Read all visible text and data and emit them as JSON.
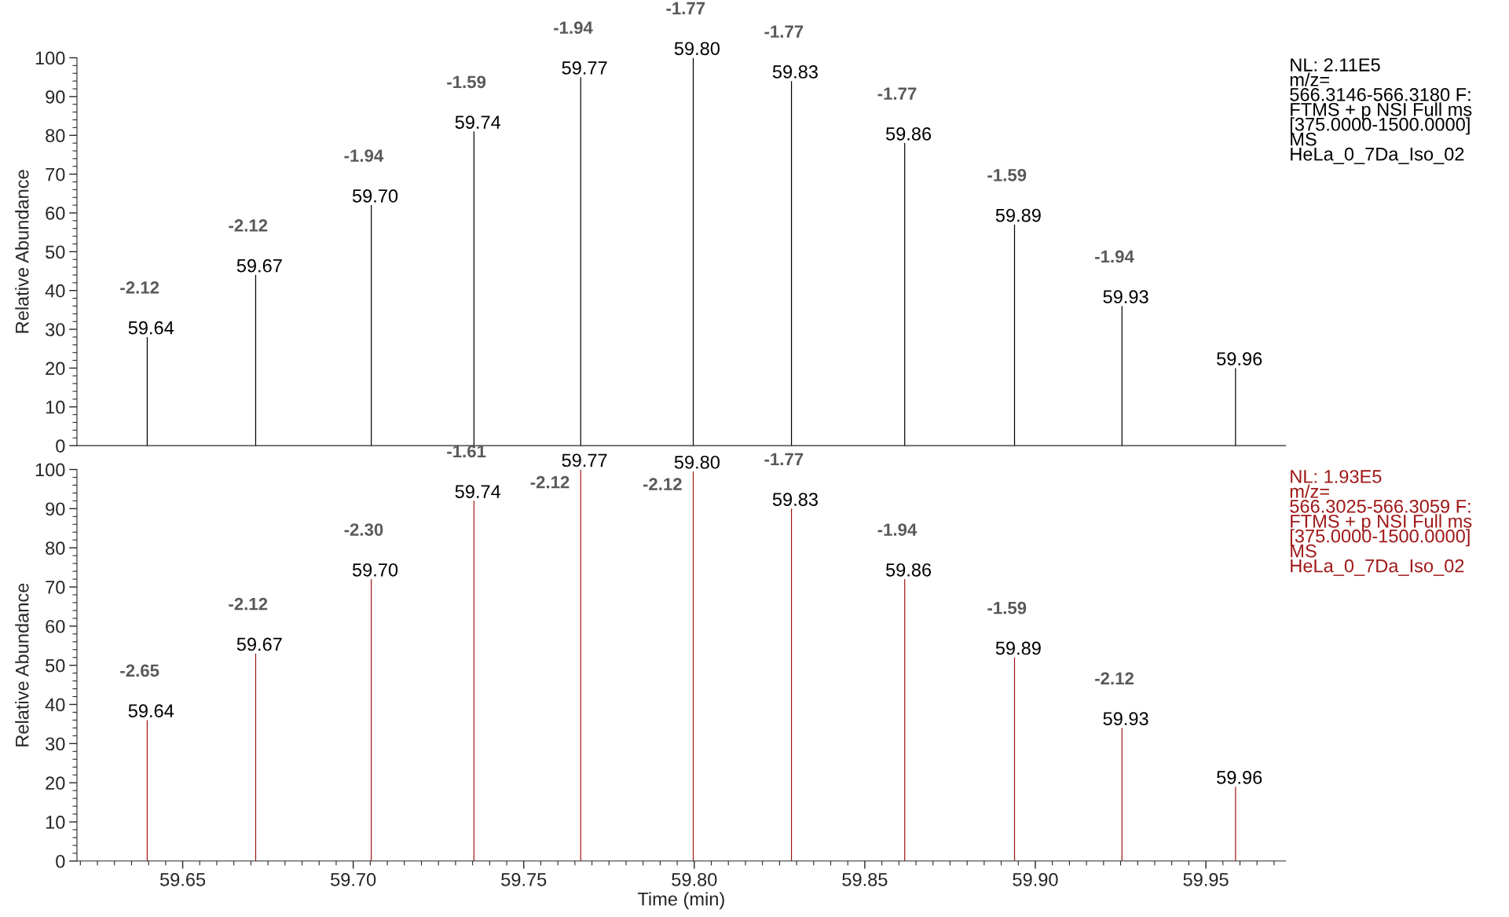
{
  "chart_data": [
    {
      "type": "bar",
      "ylabel": "Relative Abundance",
      "xlim": [
        59.619,
        59.9734
      ],
      "ylim": [
        0,
        100
      ],
      "yticks": [
        0,
        10,
        20,
        30,
        40,
        50,
        60,
        70,
        80,
        90,
        100
      ],
      "tick_labels": "y",
      "grid": false,
      "x": [
        59.6396,
        59.6714,
        59.7053,
        59.7354,
        59.7667,
        59.7997,
        59.8285,
        59.8617,
        59.8939,
        59.9254,
        59.9587
      ],
      "series": [
        {
          "color": "#000000",
          "values": [
            28,
            44,
            62,
            81,
            95,
            100,
            94,
            78,
            57,
            36,
            20
          ]
        }
      ],
      "annotations": [
        {
          "text": "59.64",
          "x": 59.6396,
          "y": 28
        },
        {
          "text": "59.67",
          "x": 59.6714,
          "y": 44
        },
        {
          "text": "59.70",
          "x": 59.7053,
          "y": 62
        },
        {
          "text": "59.74",
          "x": 59.7354,
          "y": 81
        },
        {
          "text": "59.77",
          "x": 59.7667,
          "y": 95
        },
        {
          "text": "59.80",
          "x": 59.7997,
          "y": 100
        },
        {
          "text": "59.83",
          "x": 59.8285,
          "y": 94
        },
        {
          "text": "59.86",
          "x": 59.8617,
          "y": 78
        },
        {
          "text": "59.89",
          "x": 59.8939,
          "y": 57
        },
        {
          "text": "59.93",
          "x": 59.9254,
          "y": 36
        },
        {
          "text": "59.96",
          "x": 59.9587,
          "y": 20
        },
        {
          "text": "-2.12",
          "x": 59.6396,
          "y": 28
        },
        {
          "text": "-2.12",
          "x": 59.6714,
          "y": 44
        },
        {
          "text": "-1.94",
          "x": 59.7053,
          "y": 62
        },
        {
          "text": "-1.59",
          "x": 59.7354,
          "y": 81
        },
        {
          "text": "-1.94",
          "x": 59.7667,
          "y": 95
        },
        {
          "text": "-1.77",
          "x": 59.7997,
          "y": 100
        },
        {
          "text": "-1.77",
          "x": 59.8285,
          "y": 94
        },
        {
          "text": "-1.77",
          "x": 59.8617,
          "y": 78
        },
        {
          "text": "-1.59",
          "x": 59.8939,
          "y": 57
        },
        {
          "text": "-1.94",
          "x": 59.9254,
          "y": 36
        },
        "NL: 2.11E5\nm/z=\n566.3146-566.3180 F:\nFTMS + p NSI Full ms\n[375.0000-1500.0000]\nMS\nHeLa_0_7Da_Iso_02"
      ]
    },
    {
      "type": "bar",
      "ylabel": "Relative Abundance",
      "xlabel": "Time (min)",
      "xlim": [
        59.619,
        59.9734
      ],
      "ylim": [
        0,
        100
      ],
      "yticks": [
        0,
        10,
        20,
        30,
        40,
        50,
        60,
        70,
        80,
        90,
        100
      ],
      "xticks": [
        {
          "value": 59.65,
          "label": "59.65"
        },
        {
          "value": 59.7,
          "label": "59.70"
        },
        {
          "value": 59.75,
          "label": "59.75"
        },
        {
          "value": 59.8,
          "label": "59.80"
        },
        {
          "value": 59.85,
          "label": "59.85"
        },
        {
          "value": 59.9,
          "label": "59.90"
        },
        {
          "value": 59.95,
          "label": "59.95"
        }
      ],
      "grid": false,
      "x": [
        59.6396,
        59.6714,
        59.7053,
        59.7354,
        59.7667,
        59.7997,
        59.8285,
        59.8617,
        59.8939,
        59.9254,
        59.9587
      ],
      "series": [
        {
          "color": "#a01818",
          "values": [
            36,
            53,
            72,
            92,
            100,
            99.5,
            90,
            72,
            52,
            34,
            19
          ]
        }
      ],
      "annotations": [
        {
          "text": "59.64",
          "x": 59.6396,
          "y": 36
        },
        {
          "text": "59.67",
          "x": 59.6714,
          "y": 53
        },
        {
          "text": "59.70",
          "x": 59.7053,
          "y": 72
        },
        {
          "text": "59.74",
          "x": 59.7354,
          "y": 92
        },
        {
          "text": "59.77",
          "x": 59.7667,
          "y": 100
        },
        {
          "text": "59.80",
          "x": 59.7997,
          "y": 99.5
        },
        {
          "text": "59.83",
          "x": 59.8285,
          "y": 90
        },
        {
          "text": "59.86",
          "x": 59.8617,
          "y": 72
        },
        {
          "text": "59.89",
          "x": 59.8939,
          "y": 52
        },
        {
          "text": "59.93",
          "x": 59.9254,
          "y": 34
        },
        {
          "text": "59.96",
          "x": 59.9587,
          "y": 19
        },
        {
          "text": "-2.65",
          "x": 59.6396,
          "y": 36
        },
        {
          "text": "-2.12",
          "x": 59.6714,
          "y": 53
        },
        {
          "text": "-2.30",
          "x": 59.7053,
          "y": 72
        },
        {
          "text": "-1.61",
          "x": 59.7354,
          "y": 92
        },
        {
          "text": "-2.12",
          "x": 59.7667,
          "y": 100
        },
        {
          "text": "-2.12",
          "x": 59.7997,
          "y": 99.5
        },
        {
          "text": "-1.77",
          "x": 59.8285,
          "y": 90
        },
        {
          "text": "-1.94",
          "x": 59.8617,
          "y": 72
        },
        {
          "text": "-1.59",
          "x": 59.8939,
          "y": 52
        },
        {
          "text": "-2.12",
          "x": 59.9254,
          "y": 34
        },
        "NL: 1.93E5\nm/z=\n566.3025-566.3059 F:\nFTMS + p NSI Full ms\n[375.0000-1500.0000]\nMS\nHeLa_0_7Da_Iso_02"
      ]
    }
  ]
}
